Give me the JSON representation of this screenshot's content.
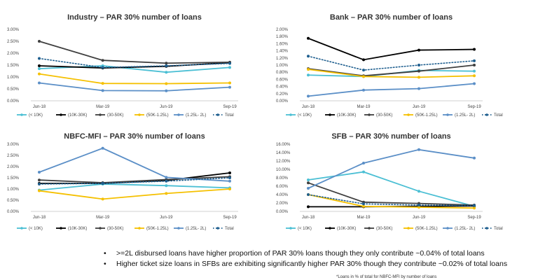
{
  "chart_data": [
    {
      "type": "line",
      "title": "Industry – PAR 30% number of loans",
      "categories": [
        "Jun-18",
        "Mar-19",
        "Jun-19",
        "Sep-19"
      ],
      "yticks": [
        "0.00%",
        "0.50%",
        "1.00%",
        "1.50%",
        "2.00%",
        "2.50%",
        "3.00%"
      ],
      "ylim": [
        0,
        3.0
      ],
      "series": [
        {
          "name": "(< 10K)",
          "values": [
            1.35,
            1.47,
            1.2,
            1.4
          ]
        },
        {
          "name": "(10K-30K)",
          "values": [
            1.47,
            1.38,
            1.45,
            1.6
          ]
        },
        {
          "name": "(30-50K)",
          "values": [
            2.5,
            1.7,
            1.58,
            1.62
          ]
        },
        {
          "name": "(50K-1.25L)",
          "values": [
            1.13,
            0.73,
            0.72,
            0.75
          ]
        },
        {
          "name": "(1.25L- 2L)",
          "values": [
            0.75,
            0.43,
            0.42,
            0.57
          ]
        },
        {
          "name": "Total",
          "values": [
            1.78,
            1.4,
            1.47,
            1.57
          ]
        }
      ]
    },
    {
      "type": "line",
      "title": "Bank – PAR 30% number of loans",
      "categories": [
        "Jun-18",
        "Mar-19",
        "Jun-19",
        "Sep-19"
      ],
      "yticks": [
        "0.00%",
        "0.20%",
        "0.40%",
        "0.60%",
        "0.80%",
        "1.00%",
        "1.20%",
        "1.40%",
        "1.60%",
        "1.80%",
        "2.00%"
      ],
      "ylim": [
        0,
        2.0
      ],
      "series": [
        {
          "name": "(< 10K)",
          "values": [
            0.72,
            0.68,
            0.85,
            0.83
          ]
        },
        {
          "name": "(10K-30K)",
          "values": [
            1.75,
            1.15,
            1.42,
            1.44
          ]
        },
        {
          "name": "(30-50K)",
          "values": [
            0.9,
            0.7,
            0.83,
            1.0
          ]
        },
        {
          "name": "(50K-1.25L)",
          "values": [
            0.88,
            0.68,
            0.66,
            0.7
          ]
        },
        {
          "name": "(1.25L- 2L)",
          "values": [
            0.13,
            0.3,
            0.34,
            0.48
          ]
        },
        {
          "name": "Total",
          "values": [
            1.25,
            0.86,
            1.0,
            1.12
          ]
        }
      ]
    },
    {
      "type": "line",
      "title": "NBFC-MFI – PAR 30% number of loans",
      "categories": [
        "Jun-18",
        "Mar-19",
        "Jun-19",
        "Sep-19"
      ],
      "yticks": [
        "0.00%",
        "0.50%",
        "1.00%",
        "1.50%",
        "2.00%",
        "2.50%",
        "3.00%"
      ],
      "ylim": [
        0,
        3.0
      ],
      "series": [
        {
          "name": "(< 10K)",
          "values": [
            0.95,
            1.22,
            1.15,
            1.05
          ]
        },
        {
          "name": "(10K-30K)",
          "values": [
            1.25,
            1.25,
            1.38,
            1.72
          ]
        },
        {
          "name": "(30-50K)",
          "values": [
            1.4,
            1.28,
            1.42,
            1.55
          ]
        },
        {
          "name": "(50K-1.25L)",
          "values": [
            0.92,
            0.55,
            0.8,
            1.0
          ]
        },
        {
          "name": "(1.25L- 2L)",
          "values": [
            1.75,
            2.82,
            1.52,
            1.35
          ]
        },
        {
          "name": "Total",
          "values": [
            1.22,
            1.25,
            1.35,
            1.5
          ]
        }
      ]
    },
    {
      "type": "line",
      "title": "SFB – PAR 30% number of loans",
      "categories": [
        "Jun-18",
        "Mar-19",
        "Jun-19",
        "Sep-19"
      ],
      "yticks": [
        "0.00%",
        "2.00%",
        "4.00%",
        "6.00%",
        "8.00%",
        "10.00%",
        "12.00%",
        "14.00%",
        "16.00%"
      ],
      "ylim": [
        0,
        16.0
      ],
      "series": [
        {
          "name": "(< 10K)",
          "values": [
            7.5,
            9.4,
            4.8,
            1.2
          ]
        },
        {
          "name": "(10K-30K)",
          "values": [
            1.1,
            1.1,
            1.2,
            1.3
          ]
        },
        {
          "name": "(30-50K)",
          "values": [
            6.8,
            2.2,
            1.9,
            1.5
          ]
        },
        {
          "name": "(50K-1.25L)",
          "values": [
            4.0,
            1.2,
            1.0,
            0.8
          ]
        },
        {
          "name": "(1.25L- 2L)",
          "values": [
            5.5,
            11.5,
            14.7,
            12.7
          ]
        },
        {
          "name": "Total",
          "values": [
            4.0,
            1.8,
            1.5,
            1.4
          ]
        }
      ]
    }
  ],
  "series_colors": {
    "(< 10K)": "#4bbfd4",
    "(10K-30K)": "#000000",
    "(30-50K)": "#3f3f3f",
    "(50K-1.25L)": "#f5c000",
    "(1.25L- 2L)": "#5b8fc7",
    "Total": "#1f5f8f"
  },
  "bullets": [
    ">=2L disbursed loans have higher proportion of PAR 30% loans though they only contribute ~0.04% of total loans",
    "Higher ticket size loans in SFBs are exhibiting significantly higher PAR 30% though they contribute ~0.02% of total loans"
  ],
  "footnote": "*Loans in % of total for NBFC-MFI by number of loans"
}
